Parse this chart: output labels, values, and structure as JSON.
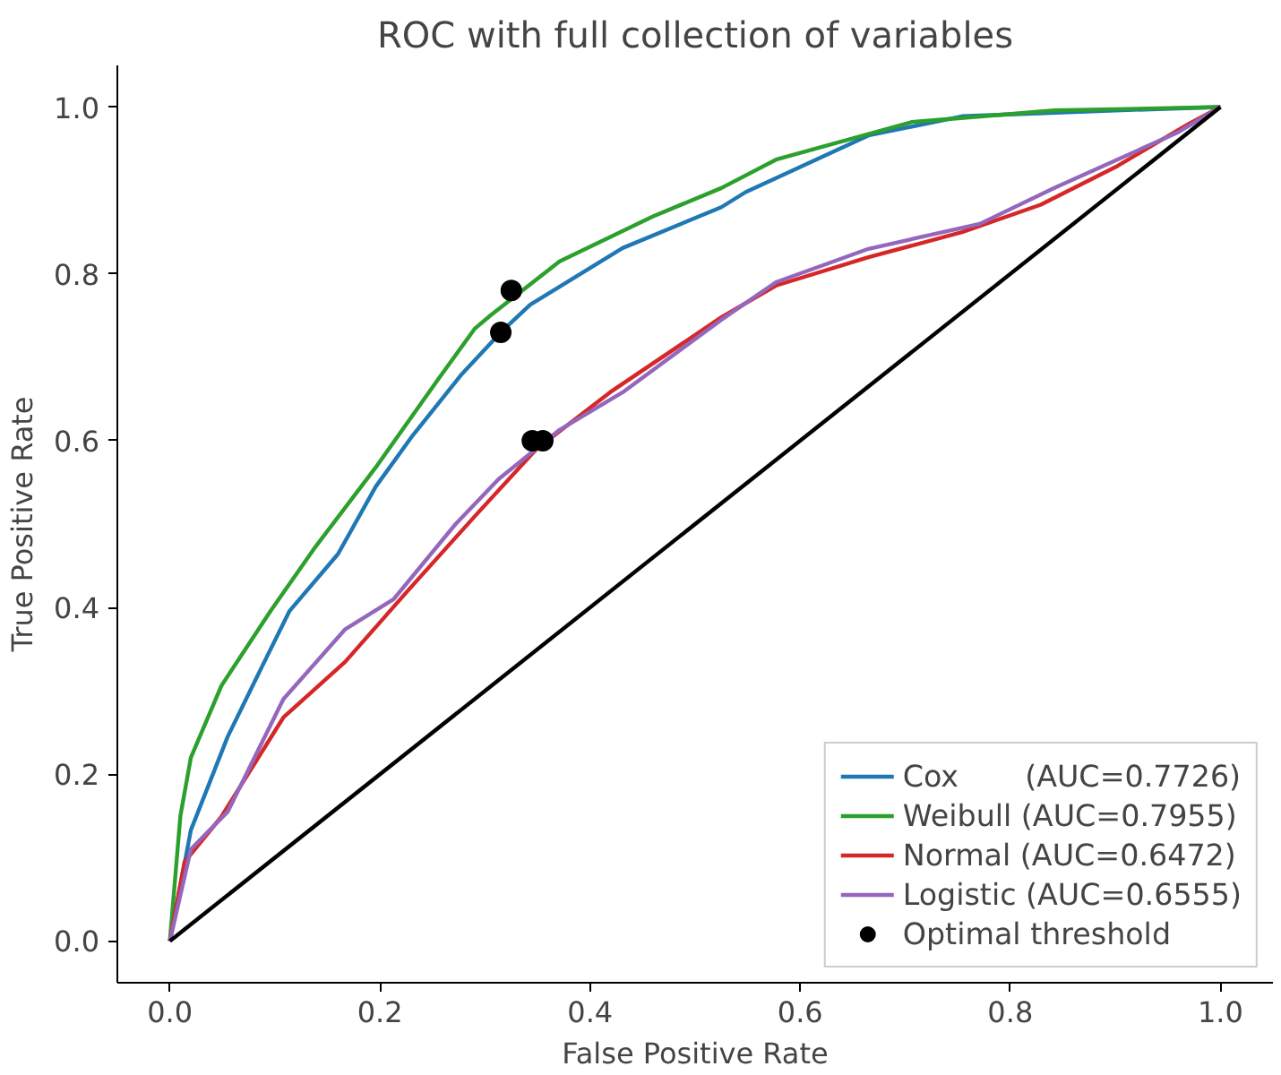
{
  "chart_data": {
    "type": "line",
    "title": "ROC with full collection of variables",
    "xlabel": "False Positive Rate",
    "ylabel": "True Positive Rate",
    "xlim": [
      -0.05,
      1.05
    ],
    "ylim": [
      -0.05,
      1.05
    ],
    "xticks": [
      {
        "value": 0,
        "label": "0.0"
      },
      0.2,
      0.4,
      0.6,
      0.8,
      {
        "value": 1,
        "label": "1.0"
      }
    ],
    "yticks": [
      {
        "value": 0,
        "label": "0.0"
      },
      0.2,
      0.4,
      0.6,
      0.8,
      {
        "value": 1,
        "label": "1.0"
      }
    ],
    "grid": false,
    "legend": "bottom right",
    "marker": "none",
    "line_style": "solid",
    "series": [
      {
        "name": "Cox       (AUC=0.7726)",
        "color": "#1f77b4",
        "x": [
          0,
          0.02,
          0.055,
          0.09,
          0.114,
          0.16,
          0.196,
          0.231,
          0.278,
          0.315,
          0.343,
          0.431,
          0.525,
          0.548,
          0.665,
          0.754,
          0.9,
          1
        ],
        "values": [
          0,
          0.133,
          0.245,
          0.335,
          0.396,
          0.464,
          0.545,
          0.606,
          0.68,
          0.73,
          0.763,
          0.831,
          0.88,
          0.898,
          0.966,
          0.989,
          0.996,
          1
        ]
      },
      {
        "name": "Weibull (AUC=0.7955)",
        "color": "#2ca02c",
        "x": [
          0,
          0.01,
          0.02,
          0.049,
          0.096,
          0.137,
          0.196,
          0.255,
          0.29,
          0.305,
          0.371,
          0.46,
          0.525,
          0.577,
          0.706,
          0.842,
          1
        ],
        "values": [
          0,
          0.15,
          0.22,
          0.306,
          0.396,
          0.47,
          0.568,
          0.673,
          0.734,
          0.75,
          0.815,
          0.869,
          0.903,
          0.937,
          0.982,
          0.996,
          1
        ]
      },
      {
        "name": "Normal (AUC=0.6472)",
        "color": "#d62728",
        "x": [
          0,
          0.014,
          0.049,
          0.108,
          0.167,
          0.225,
          0.29,
          0.349,
          0.419,
          0.525,
          0.577,
          0.665,
          0.754,
          0.829,
          0.9,
          0.97,
          1
        ],
        "values": [
          0,
          0.095,
          0.149,
          0.268,
          0.335,
          0.418,
          0.509,
          0.59,
          0.658,
          0.748,
          0.786,
          0.82,
          0.85,
          0.883,
          0.928,
          0.98,
          1
        ]
      },
      {
        "name": "Logistic (AUC=0.6555)",
        "color": "#9467bd",
        "x": [
          0,
          0.02,
          0.055,
          0.108,
          0.167,
          0.213,
          0.272,
          0.313,
          0.371,
          0.431,
          0.525,
          0.577,
          0.665,
          0.771,
          0.842,
          0.96,
          1
        ],
        "values": [
          0,
          0.11,
          0.155,
          0.29,
          0.374,
          0.41,
          0.5,
          0.554,
          0.613,
          0.658,
          0.745,
          0.79,
          0.83,
          0.86,
          0.903,
          0.97,
          1
        ]
      },
      {
        "color": "#000000",
        "x": [
          0,
          1
        ],
        "values": [
          0,
          1
        ]
      },
      {
        "name": "Optimal threshold",
        "type": "scatter",
        "marker": "circle",
        "color": "#000000",
        "x": [
          0.315,
          0.325,
          0.355,
          0.345
        ],
        "values": [
          0.73,
          0.78,
          0.6,
          0.6
        ]
      }
    ]
  }
}
